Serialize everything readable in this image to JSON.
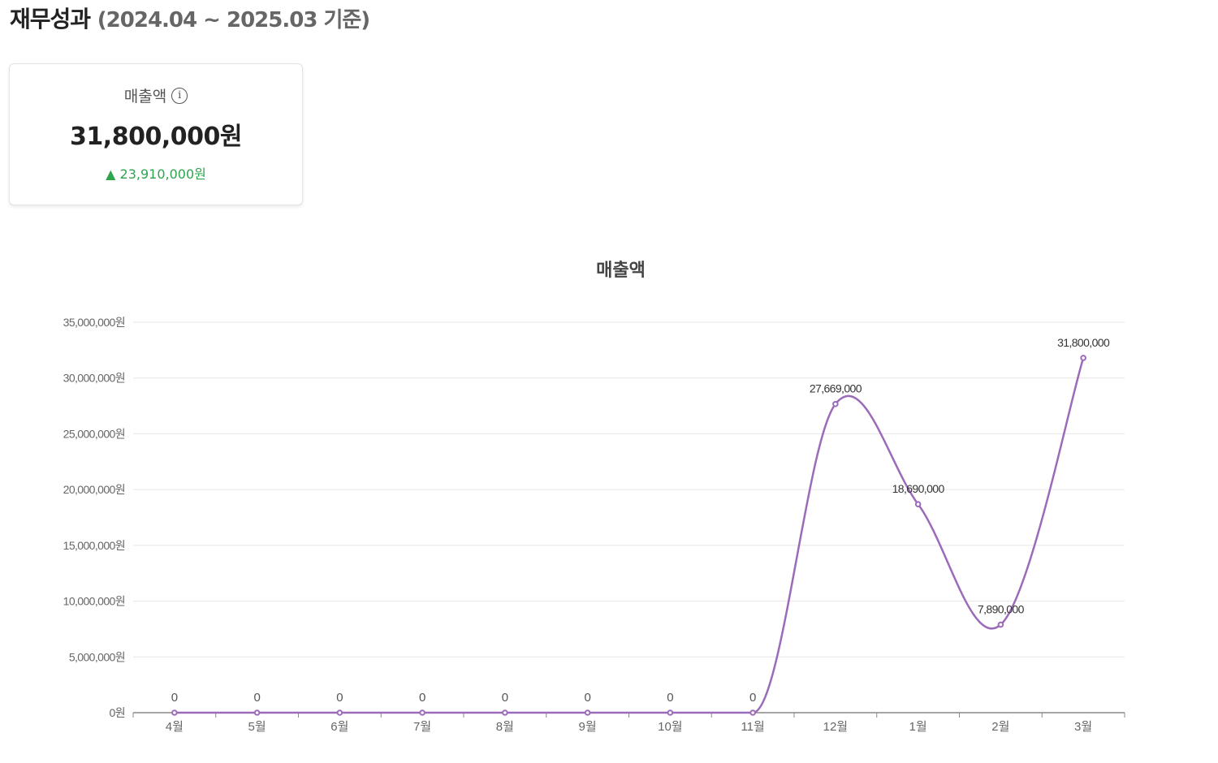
{
  "header": {
    "title": "재무성과",
    "period": "(2024.04 ~ 2025.03 기준)"
  },
  "kpi": {
    "label": "매출액",
    "info_icon": "info-icon",
    "value": "31,800,000원",
    "change_arrow": "▲",
    "change": "23,910,000원",
    "change_color": "#2ea44f"
  },
  "chart_data": {
    "type": "line",
    "title": "매출액",
    "categories": [
      "4월",
      "5월",
      "6월",
      "7월",
      "8월",
      "9월",
      "10월",
      "11월",
      "12월",
      "1월",
      "2월",
      "3월"
    ],
    "values": [
      0,
      0,
      0,
      0,
      0,
      0,
      0,
      0,
      27669000,
      18690000,
      7890000,
      31800000
    ],
    "value_labels": [
      "0",
      "0",
      "0",
      "0",
      "0",
      "0",
      "0",
      "0",
      "27,669,000",
      "18,690,000",
      "7,890,000",
      "31,800,000"
    ],
    "ylim": [
      0,
      35000000
    ],
    "yticks": [
      0,
      5000000,
      10000000,
      15000000,
      20000000,
      25000000,
      30000000,
      35000000
    ],
    "ytick_labels": [
      "0원",
      "5,000,000원",
      "10,000,000원",
      "15,000,000원",
      "20,000,000원",
      "25,000,000원",
      "30,000,000원",
      "35,000,000원"
    ],
    "line_color": "#9b6bb9",
    "grid": true,
    "smooth": true
  }
}
